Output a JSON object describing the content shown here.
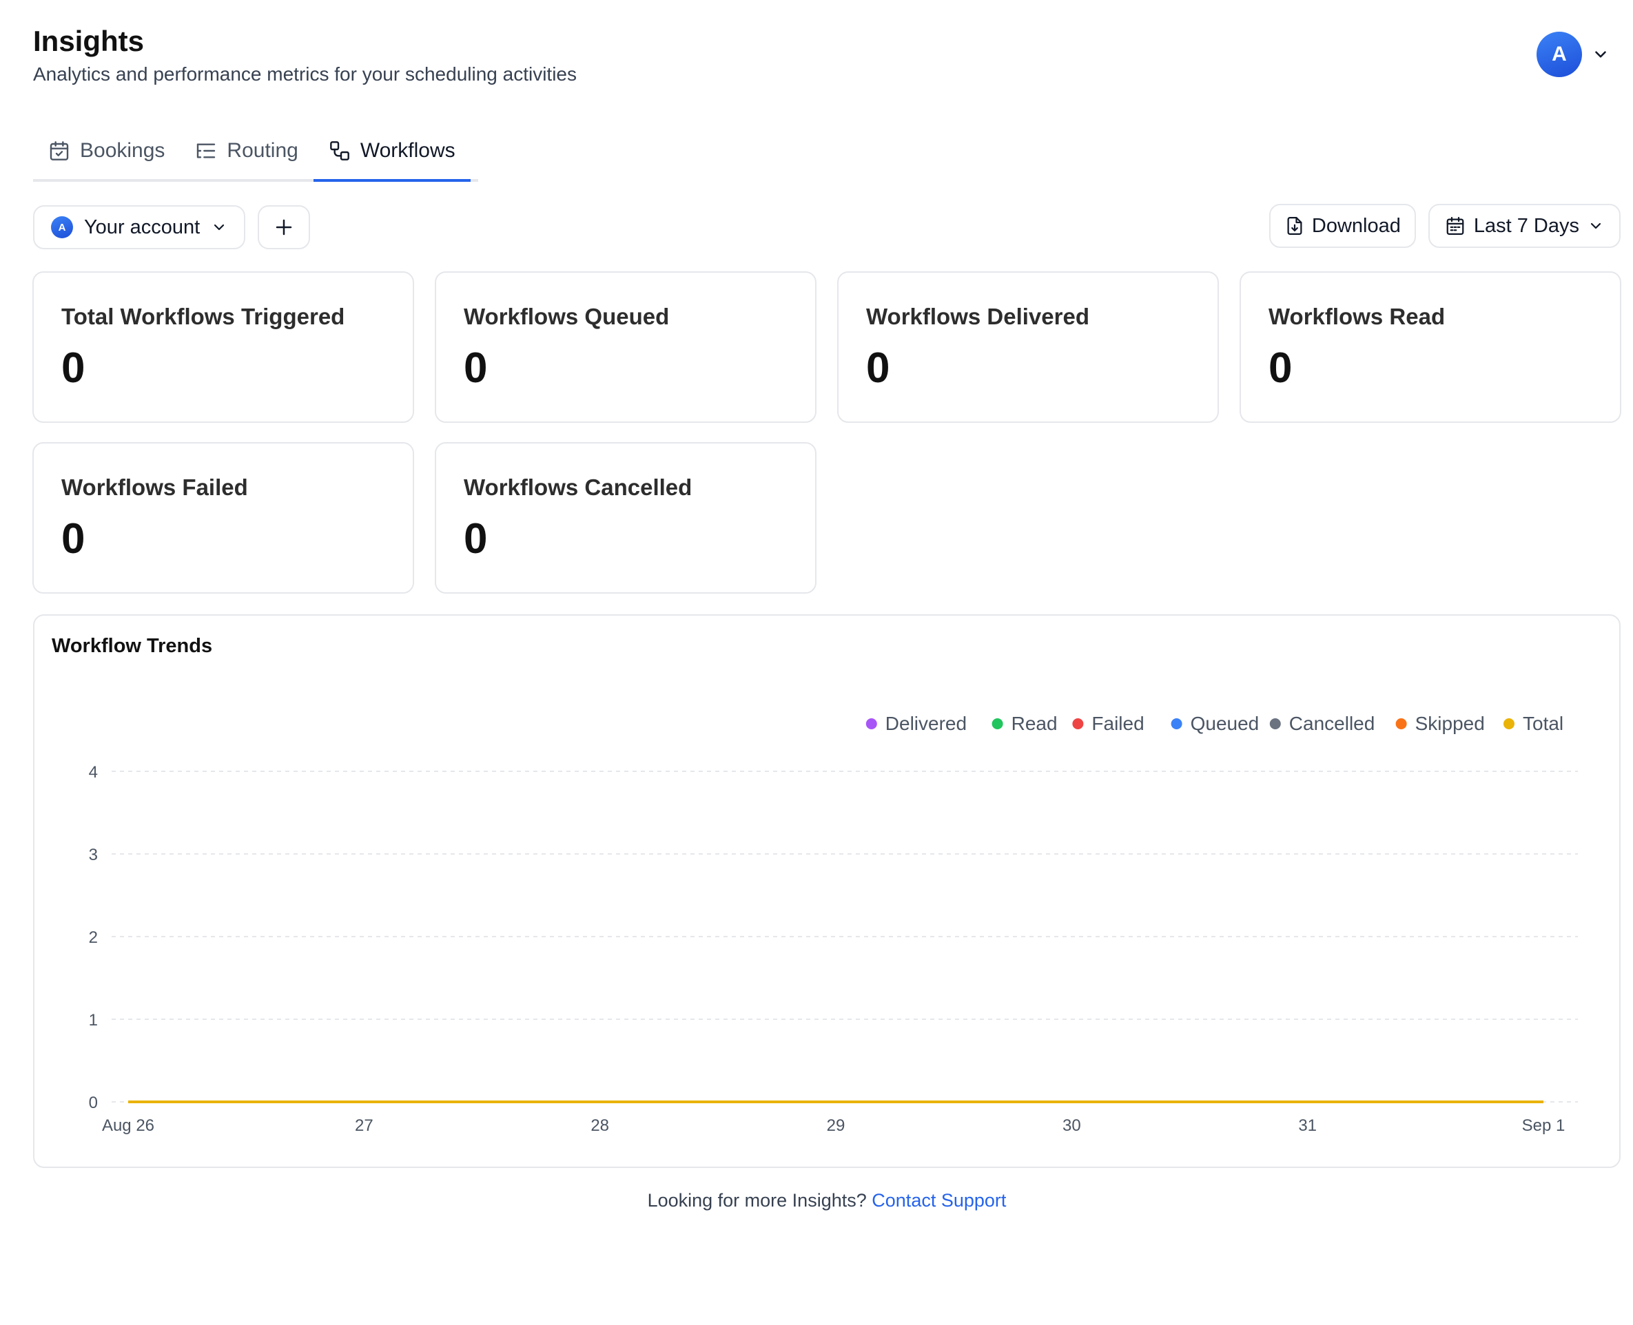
{
  "header": {
    "title": "Insights",
    "subtitle": "Analytics and performance metrics for your scheduling activities"
  },
  "user": {
    "avatar_initial": "A"
  },
  "tabs": [
    {
      "label": "Bookings",
      "icon": "calendar-check-icon",
      "active": false
    },
    {
      "label": "Routing",
      "icon": "routing-list-icon",
      "active": false
    },
    {
      "label": "Workflows",
      "icon": "workflow-icon",
      "active": true
    }
  ],
  "filters": {
    "account_label": "Your account",
    "account_initial": "A",
    "add_icon": "plus-icon"
  },
  "actions": {
    "download_label": "Download",
    "date_range_label": "Last 7 Days"
  },
  "metrics": [
    {
      "label": "Total Workflows Triggered",
      "value": "0"
    },
    {
      "label": "Workflows Queued",
      "value": "0"
    },
    {
      "label": "Workflows Delivered",
      "value": "0"
    },
    {
      "label": "Workflows Read",
      "value": "0"
    },
    {
      "label": "Workflows Failed",
      "value": "0"
    },
    {
      "label": "Workflows Cancelled",
      "value": "0"
    }
  ],
  "chart_title": "Workflow Trends",
  "chart_data": {
    "type": "line",
    "title": "Workflow Trends",
    "xlabel": "",
    "ylabel": "",
    "categories": [
      "Aug 26",
      "27",
      "28",
      "29",
      "30",
      "31",
      "Sep 1"
    ],
    "ylim": [
      0,
      4
    ],
    "yticks": [
      0,
      1,
      2,
      3,
      4
    ],
    "grid": true,
    "legend_position": "top-right",
    "series": [
      {
        "name": "Delivered",
        "color": "#a855f7",
        "values": [
          0,
          0,
          0,
          0,
          0,
          0,
          0
        ]
      },
      {
        "name": "Read",
        "color": "#22c55e",
        "values": [
          0,
          0,
          0,
          0,
          0,
          0,
          0
        ]
      },
      {
        "name": "Failed",
        "color": "#ef4444",
        "values": [
          0,
          0,
          0,
          0,
          0,
          0,
          0
        ]
      },
      {
        "name": "Queued",
        "color": "#3b82f6",
        "values": [
          0,
          0,
          0,
          0,
          0,
          0,
          0
        ]
      },
      {
        "name": "Cancelled",
        "color": "#6b7280",
        "values": [
          0,
          0,
          0,
          0,
          0,
          0,
          0
        ]
      },
      {
        "name": "Skipped",
        "color": "#f97316",
        "values": [
          0,
          0,
          0,
          0,
          0,
          0,
          0
        ]
      },
      {
        "name": "Total",
        "color": "#eab308",
        "values": [
          0,
          0,
          0,
          0,
          0,
          0,
          0
        ]
      }
    ]
  },
  "footer": {
    "text": "Looking for more Insights?",
    "link_label": "Contact Support"
  }
}
